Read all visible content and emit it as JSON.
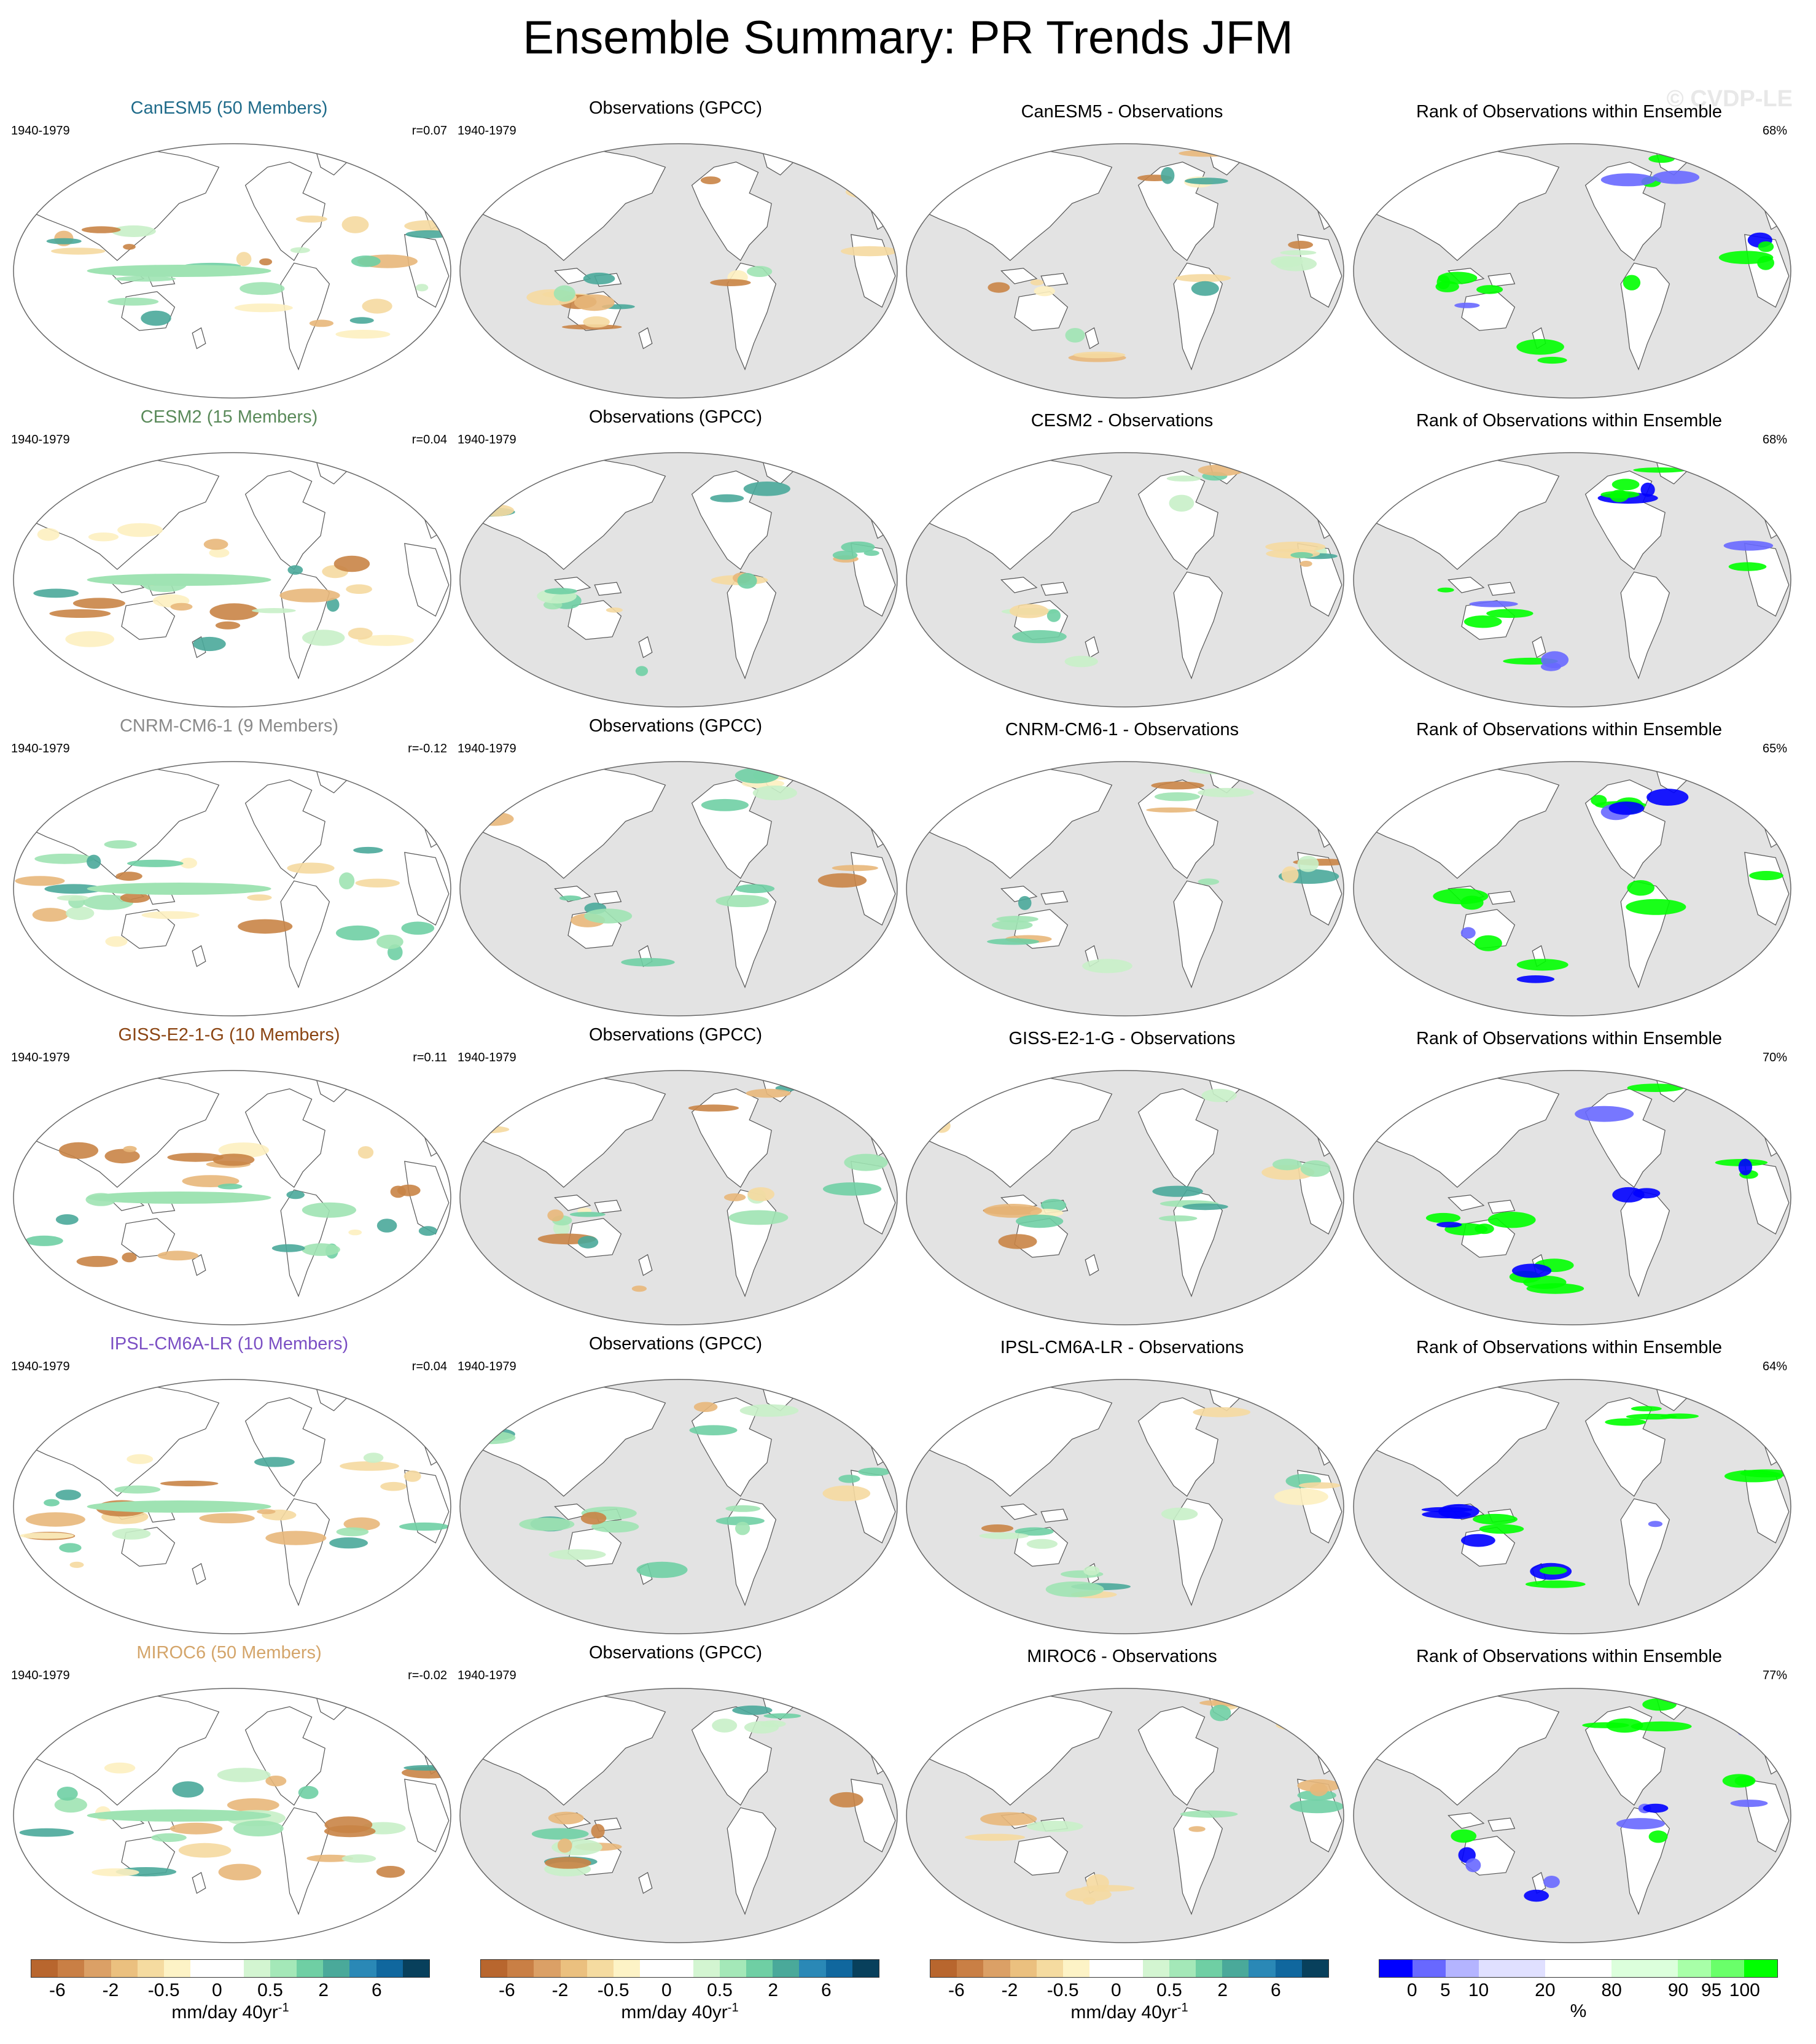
{
  "title": "Ensemble Summary: PR Trends JFM",
  "watermark": "© CVDP-LE",
  "period": "1940-1979",
  "obs_title": "Observations (GPCC)",
  "rank_title": "Rank of Observations within Ensemble",
  "rows": [
    {
      "model": "CanESM5 (50 Members)",
      "model_color": "#1f6b8a",
      "r": "r=0.07",
      "diff_title": "CanESM5 - Observations",
      "rank_pct": "68%"
    },
    {
      "model": "CESM2 (15 Members)",
      "model_color": "#5a8a5a",
      "r": "r=0.04",
      "diff_title": "CESM2 - Observations",
      "rank_pct": "68%"
    },
    {
      "model": "CNRM-CM6-1 (9 Members)",
      "model_color": "#8a8a8a",
      "r": "r=-0.12",
      "diff_title": "CNRM-CM6-1 - Observations",
      "rank_pct": "65%"
    },
    {
      "model": "GISS-E2-1-G (10 Members)",
      "model_color": "#8b4513",
      "r": "r=0.11",
      "diff_title": "GISS-E2-1-G - Observations",
      "rank_pct": "70%"
    },
    {
      "model": "IPSL-CM6A-LR (10 Members)",
      "model_color": "#7b4fc4",
      "r": "r=0.04",
      "diff_title": "IPSL-CM6A-LR - Observations",
      "rank_pct": "64%"
    },
    {
      "model": "MIROC6 (50 Members)",
      "model_color": "#d4a56a",
      "r": "r=-0.02",
      "diff_title": "MIROC6 - Observations",
      "rank_pct": "77%"
    }
  ],
  "colorbars": [
    {
      "colors": [
        "#b8662e",
        "#c97f45",
        "#dba066",
        "#ebc07f",
        "#f5dba0",
        "#fdf3c6",
        "#ffffff",
        "#ffffff",
        "#d3f5d1",
        "#a4e8b8",
        "#6fcfa4",
        "#4aa99a",
        "#2a88b6",
        "#10679e",
        "#08405c"
      ],
      "ticks": [
        "-6",
        "-2",
        "-0.5",
        "0",
        "0.5",
        "2",
        "6"
      ],
      "units": "mm/day 40yr",
      "sup": "-1"
    },
    {
      "colors": [
        "#b8662e",
        "#c97f45",
        "#dba066",
        "#ebc07f",
        "#f5dba0",
        "#fdf3c6",
        "#ffffff",
        "#ffffff",
        "#d3f5d1",
        "#a4e8b8",
        "#6fcfa4",
        "#4aa99a",
        "#2a88b6",
        "#10679e",
        "#08405c"
      ],
      "ticks": [
        "-6",
        "-2",
        "-0.5",
        "0",
        "0.5",
        "2",
        "6"
      ],
      "units": "mm/day 40yr",
      "sup": "-1"
    },
    {
      "colors": [
        "#b8662e",
        "#c97f45",
        "#dba066",
        "#ebc07f",
        "#f5dba0",
        "#fdf3c6",
        "#ffffff",
        "#ffffff",
        "#d3f5d1",
        "#a4e8b8",
        "#6fcfa4",
        "#4aa99a",
        "#2a88b6",
        "#10679e",
        "#08405c"
      ],
      "ticks": [
        "-6",
        "-2",
        "-0.5",
        "0",
        "0.5",
        "2",
        "6"
      ],
      "units": "mm/day 40yr",
      "sup": "-1"
    },
    {
      "colors": [
        "#0000ff",
        "#6868ff",
        "#b4b4ff",
        "#e0e0ff",
        "#e0e0ff",
        "#ffffff",
        "#ffffff",
        "#dcffdc",
        "#dcffdc",
        "#a8ffa8",
        "#6aff6a",
        "#00ff00"
      ],
      "ticks": [
        "0",
        "5",
        "10",
        "20",
        "80",
        "90",
        "95",
        "100"
      ],
      "units": "%",
      "sup": ""
    }
  ]
}
